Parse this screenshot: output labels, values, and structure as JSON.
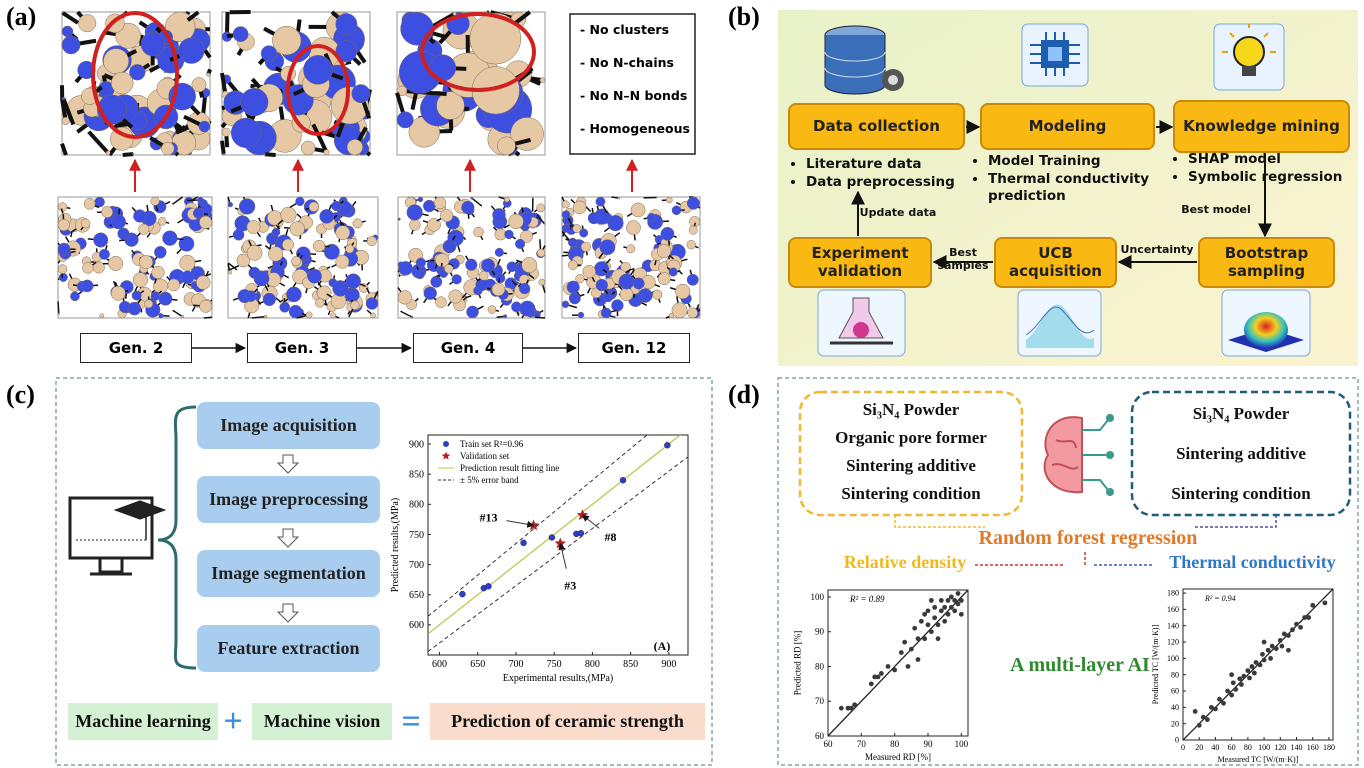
{
  "panel_a": {
    "label": "(a)",
    "notes": [
      "- No clusters",
      "- No N-chains",
      "- No N–N bonds",
      "- Homogeneous"
    ],
    "generations": [
      "Gen. 2",
      "Gen. 3",
      "Gen. 4",
      "Gen. 12"
    ]
  },
  "panel_b": {
    "label": "(b)",
    "nodes": [
      {
        "label": "Data collection",
        "bullets": [
          "Literature data",
          "Data preprocessing"
        ]
      },
      {
        "label": "Modeling",
        "bullets": [
          "Model Training",
          "Thermal conductivity prediction"
        ]
      },
      {
        "label": "Knowledge mining",
        "bullets": [
          "SHAP model",
          "Symbolic regression"
        ]
      },
      {
        "label": "Bootstrap sampling"
      },
      {
        "label": "UCB acquisition"
      },
      {
        "label": "Experiment validation"
      }
    ],
    "edge_labels": [
      "Best model",
      "Uncertainty",
      "Best samples",
      "Update data"
    ]
  },
  "panel_c": {
    "label": "(c)",
    "steps": [
      "Image acquisition",
      "Image preprocessing",
      "Image segmentation",
      "Feature extraction"
    ],
    "equation": [
      "Machine learning",
      "+",
      "Machine vision",
      "=",
      "Prediction of ceramic strength"
    ],
    "chart": {
      "type": "scatter",
      "xlabel": "Experimental results,(MPa)",
      "ylabel": "Predicted results,(MPa)",
      "tag": "(A)",
      "xlim": [
        585,
        925
      ],
      "xticks": [
        600,
        650,
        700,
        750,
        800,
        850,
        900
      ],
      "ylim": [
        550,
        915
      ],
      "yticks": [
        600,
        650,
        700,
        750,
        800,
        850,
        900
      ],
      "fit_line": "Prediction result fitting line",
      "fit_color": "#b8c94a",
      "band": "± 5% error band",
      "band_pct": 5,
      "series": [
        {
          "name": "Train set R²=0.96",
          "color": "#2d3fc8",
          "marker": "circle",
          "x": [
            630,
            658,
            664,
            710,
            747,
            779,
            785,
            840,
            898
          ],
          "values": [
            651,
            661,
            664,
            736,
            745,
            751,
            752,
            840,
            898
          ]
        },
        {
          "name": "Validation set",
          "color": "#b0202a",
          "marker": "star",
          "x": [
            723,
            758,
            787
          ],
          "values": [
            765,
            735,
            782
          ],
          "point_labels": [
            "#13",
            "#3",
            "#8"
          ]
        }
      ]
    }
  },
  "panel_d": {
    "label": "(d)",
    "left_box": [
      "Si₃N₄ Powder",
      "Organic pore former",
      "Sintering additive",
      "Sintering condition"
    ],
    "right_box": [
      "Si₃N₄ Powder",
      "Sintering additive",
      "Sintering condition"
    ],
    "method": "Random forest regression",
    "targets": [
      "Relative density",
      "Thermal conductivity"
    ],
    "caption": "A multi-layer AI",
    "charts": [
      {
        "type": "scatter",
        "xlabel": "Measured RD [%]",
        "ylabel": "Predicted RD [%]",
        "annotation": "R² = 0.89",
        "xlim": [
          60,
          102
        ],
        "xticks": [
          60,
          70,
          80,
          90,
          100
        ],
        "ylim": [
          60,
          102
        ],
        "yticks": [
          60,
          70,
          80,
          90,
          100
        ],
        "series": [
          {
            "color": "#3a3a3a",
            "x": [
              64,
              66,
              67,
              68,
              73,
              74,
              75,
              76,
              78,
              80,
              82,
              83,
              85,
              86,
              87,
              88,
              89,
              90,
              90,
              91,
              92,
              92,
              93,
              94,
              94,
              95,
              95,
              96,
              96,
              97,
              97,
              98,
              98,
              99,
              99,
              100,
              100,
              93,
              89,
              87,
              84,
              91
            ],
            "values": [
              68,
              68,
              68,
              69,
              75,
              77,
              77,
              78,
              80,
              79,
              84,
              87,
              85,
              91,
              88,
              93,
              88,
              92,
              96,
              90,
              94,
              97,
              92,
              96,
              99,
              93,
              97,
              95,
              99,
              97,
              100,
              96,
              99,
              98,
              101,
              99,
              95,
              88,
              95,
              82,
              80,
              99
            ]
          }
        ]
      },
      {
        "type": "scatter",
        "xlabel": "Measured TC [W/(m·K)]",
        "ylabel": "Predicted TC [W/(m·K)]",
        "annotation": "R² = 0.94",
        "xlim": [
          0,
          185
        ],
        "xticks": [
          0,
          20,
          40,
          60,
          80,
          100,
          120,
          140,
          160,
          180
        ],
        "ylim": [
          0,
          185
        ],
        "yticks": [
          0,
          20,
          40,
          60,
          80,
          100,
          120,
          140,
          160,
          180
        ],
        "series": [
          {
            "color": "#3a3a3a",
            "x": [
              15,
              20,
              25,
              30,
              35,
              40,
              45,
              50,
              55,
              60,
              62,
              65,
              70,
              72,
              75,
              80,
              82,
              85,
              88,
              90,
              95,
              98,
              100,
              105,
              108,
              110,
              115,
              120,
              122,
              125,
              130,
              135,
              140,
              145,
              150,
              155,
              160,
              175,
              60,
              100,
              130
            ],
            "values": [
              35,
              18,
              28,
              25,
              40,
              38,
              50,
              45,
              60,
              55,
              70,
              62,
              75,
              68,
              78,
              85,
              76,
              90,
              82,
              95,
              92,
              105,
              98,
              110,
              100,
              115,
              112,
              122,
              115,
              130,
              128,
              135,
              142,
              138,
              150,
              150,
              165,
              168,
              80,
              120,
              110
            ]
          }
        ]
      }
    ]
  }
}
